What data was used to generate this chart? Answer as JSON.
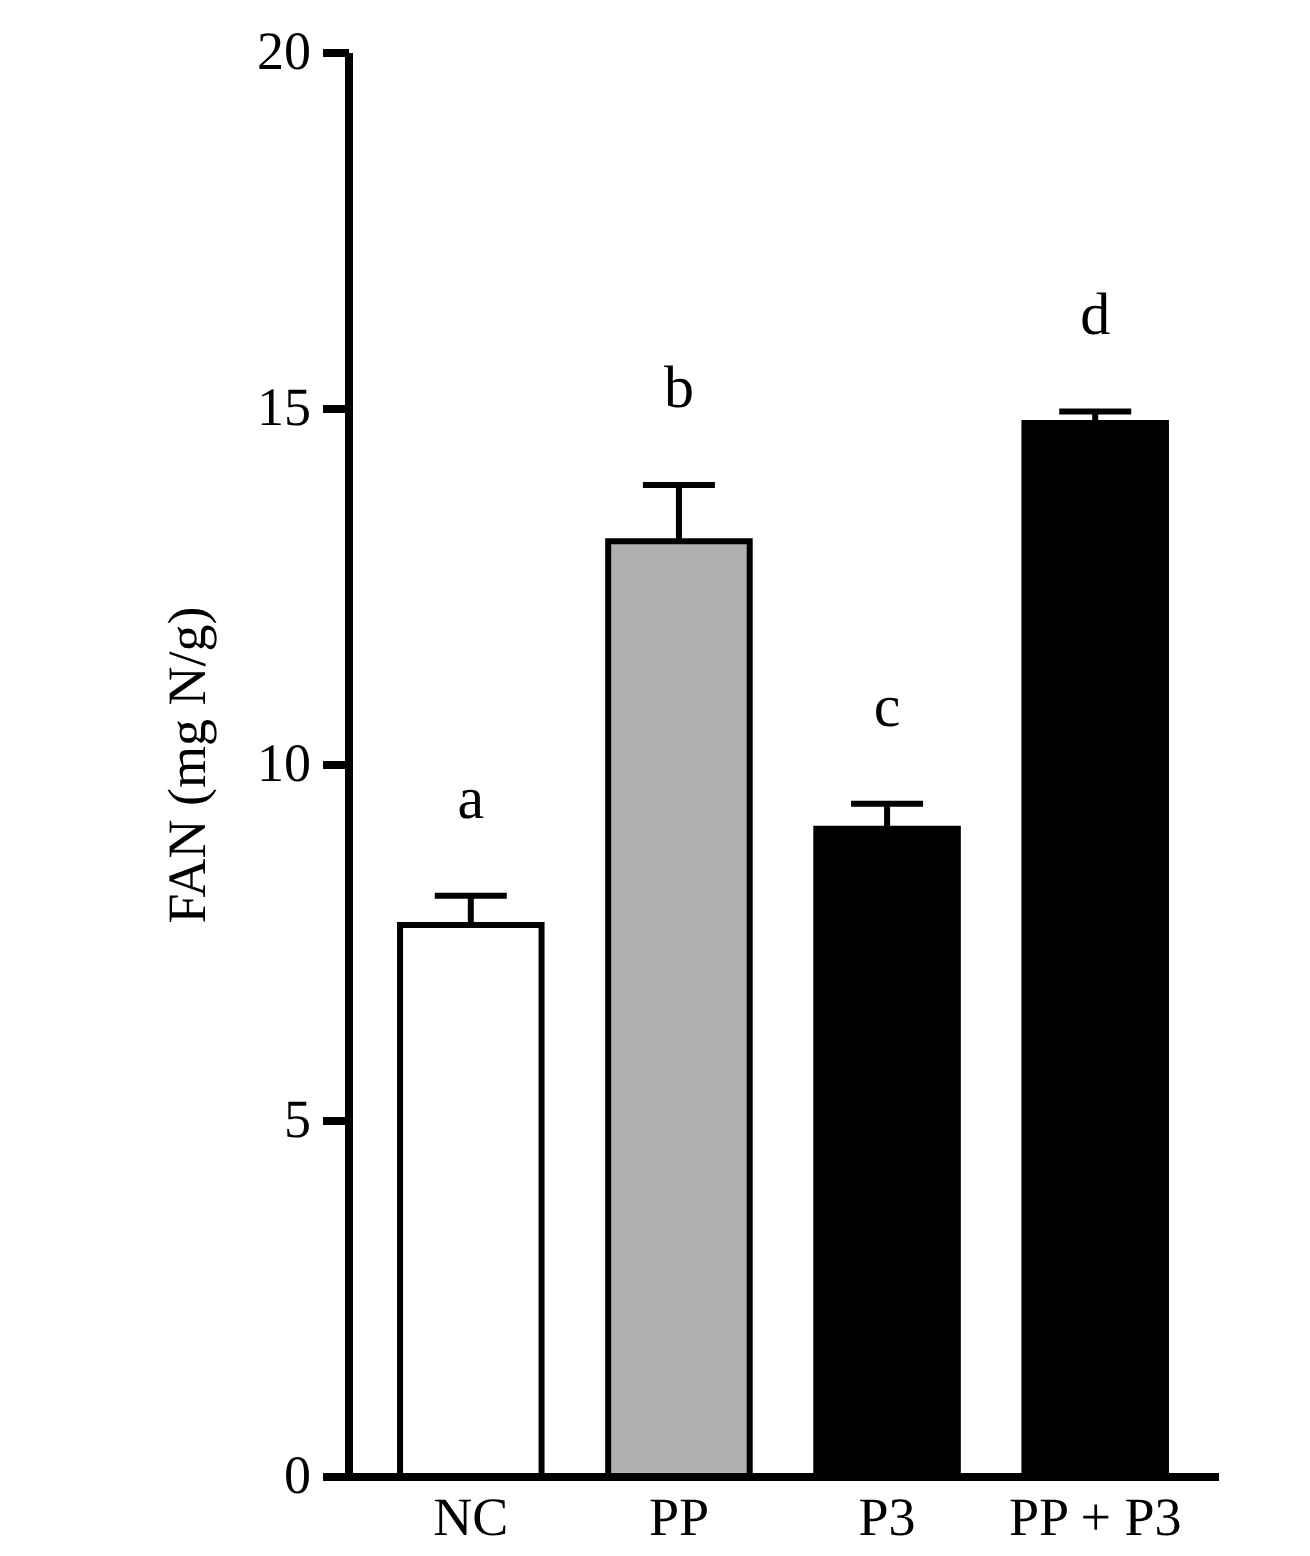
{
  "chart_data": {
    "type": "bar",
    "ylabel": "FAN (mg N/g)",
    "categories": [
      "NC",
      "PP",
      "P3",
      "PP + P3"
    ],
    "values": [
      7.74,
      13.13,
      9.09,
      14.79
    ],
    "errors": [
      0.41,
      0.79,
      0.35,
      0.16
    ],
    "colors": [
      "#ffffff",
      "#b0b0b0",
      "#000000",
      "#000000"
    ],
    "ylim": [
      0,
      20
    ],
    "yticks": [
      0,
      5,
      10,
      15,
      20
    ],
    "grid": false,
    "legend": false,
    "annotations": [
      "a",
      "b",
      "c",
      "d"
    ]
  }
}
